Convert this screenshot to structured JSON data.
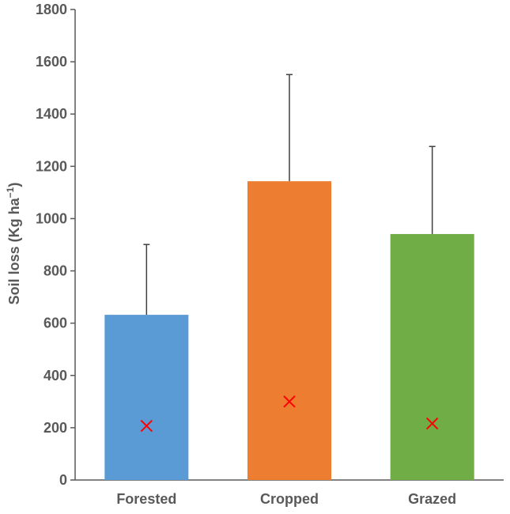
{
  "chart_data": {
    "type": "bar",
    "categories": [
      "Forested",
      "Cropped",
      "Grazed"
    ],
    "values": [
      632,
      1143,
      941
    ],
    "error_upper": [
      901,
      1551,
      1276
    ],
    "marker_values": [
      207,
      300,
      216
    ],
    "ylabel": "Soil loss (Kg ha",
    "ylabel_superscript": "−1",
    "ylabel_close": ")",
    "ylim": [
      0,
      1800
    ],
    "yticks": [
      0,
      200,
      400,
      600,
      800,
      1000,
      1200,
      1400,
      1600,
      1800
    ],
    "grid": false,
    "legend": "none",
    "colors": {
      "bars": [
        "#5b9bd5",
        "#ed7d31",
        "#70ad47"
      ],
      "axis": "#595959",
      "error_bar": "#404040",
      "marker": "#ff0000"
    }
  }
}
